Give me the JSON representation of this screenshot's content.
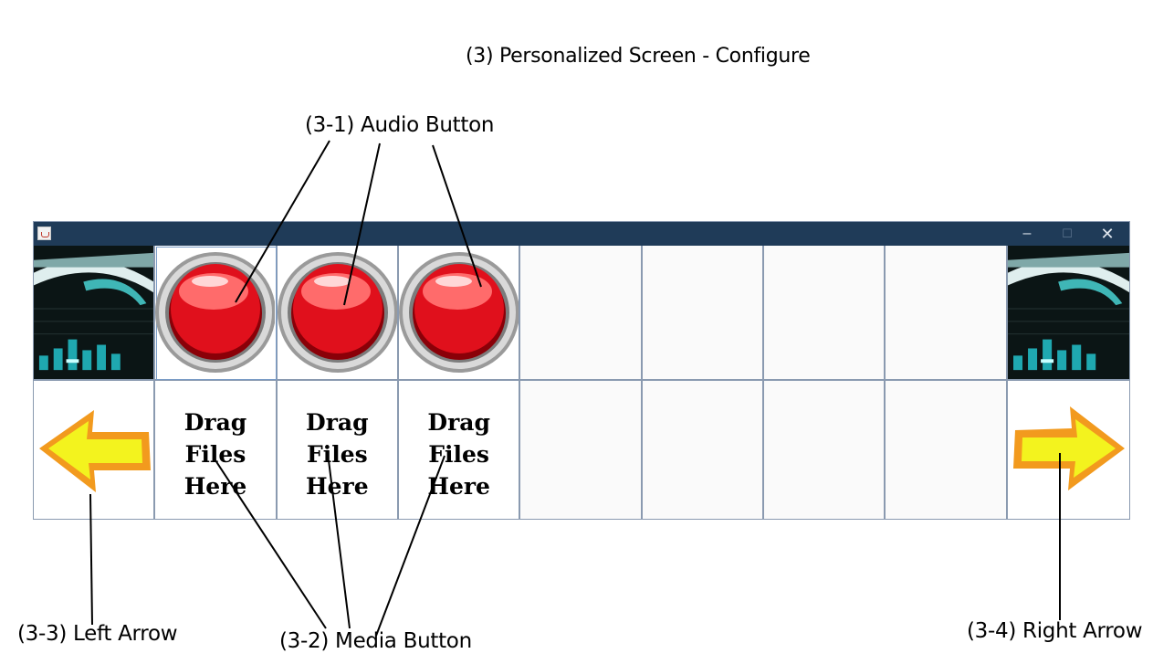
{
  "annotations": {
    "title": "(3) Personalized Screen - Configure",
    "audio_button": "(3-1) Audio Button",
    "media_button": "(3-2) Media Button",
    "left_arrow": "(3-3) Left Arrow",
    "right_arrow": "(3-4) Right Arrow"
  },
  "window": {
    "controls": {
      "minimize": "–",
      "maximize": "☐",
      "close": "✕"
    },
    "title_bar_color": "#1f3b58",
    "icons": {
      "app": "java-cup-icon",
      "left_panel": "equalizer-image",
      "right_panel": "equalizer-image",
      "audio": "red-push-button-icon",
      "left_arrow": "yellow-left-arrow-icon",
      "right_arrow": "yellow-right-arrow-icon"
    },
    "media_buttons": [
      {
        "line1": "Drag",
        "line2": "Files",
        "line3": "Here"
      },
      {
        "line1": "Drag",
        "line2": "Files",
        "line3": "Here"
      },
      {
        "line1": "Drag",
        "line2": "Files",
        "line3": "Here"
      }
    ],
    "colors": {
      "audio_button_red": "#e0101c",
      "arrow_yellow": "#f3f31e",
      "arrow_orange": "#f29a1e",
      "grid_line": "#8a9ab0"
    }
  }
}
